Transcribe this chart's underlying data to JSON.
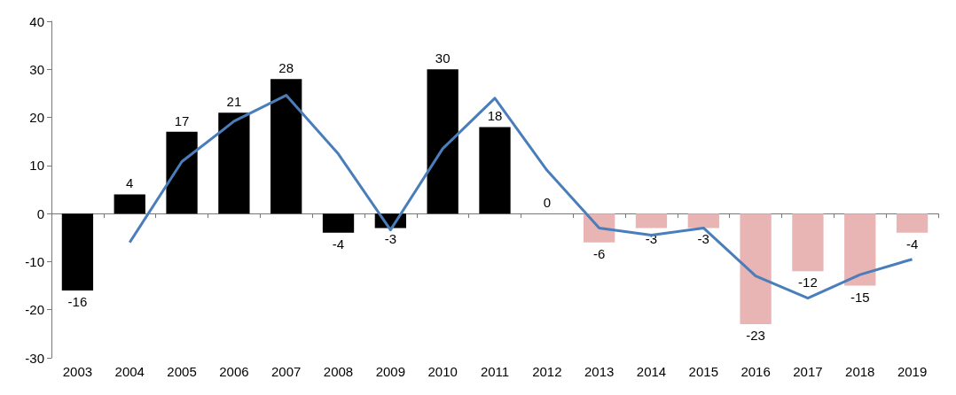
{
  "chart_data": {
    "type": "bar",
    "categories": [
      "2003",
      "2004",
      "2005",
      "2006",
      "2007",
      "2008",
      "2009",
      "2010",
      "2011",
      "2012",
      "2013",
      "2014",
      "2015",
      "2016",
      "2017",
      "2018",
      "2019"
    ],
    "series": [
      {
        "values": [
          -16,
          4,
          17,
          21,
          28,
          -4,
          -3,
          30,
          18,
          0,
          -6,
          -3,
          -3,
          -23,
          -12,
          -15,
          -4
        ],
        "value_labels": [
          "-16",
          "4",
          "17",
          "21",
          "28",
          "-4",
          "-3",
          "30",
          "18",
          "0",
          "-6",
          "-3",
          "-3",
          "-23",
          "-12",
          "-15",
          "-4"
        ],
        "colors": [
          "#000000",
          "#000000",
          "#000000",
          "#000000",
          "#000000",
          "#000000",
          "#000000",
          "#000000",
          "#000000",
          "#000000",
          "#e8b4b4",
          "#e8b4b4",
          "#e8b4b4",
          "#e8b4b4",
          "#e8b4b4",
          "#e8b4b4",
          "#e8b4b4"
        ]
      },
      {
        "type": "line",
        "color": "#4a7ebb",
        "values": [
          null,
          -6,
          10.8,
          19.2,
          24.6,
          12.4,
          -3.4,
          13.5,
          24,
          9,
          -3,
          -4.5,
          -3,
          -13,
          -17.6,
          -12.7,
          -9.5
        ]
      }
    ],
    "ylim": [
      -30,
      40
    ],
    "yticks": [
      -30,
      -20,
      -10,
      0,
      10,
      20,
      30,
      40
    ],
    "marker": "none",
    "line_style": "solid"
  }
}
